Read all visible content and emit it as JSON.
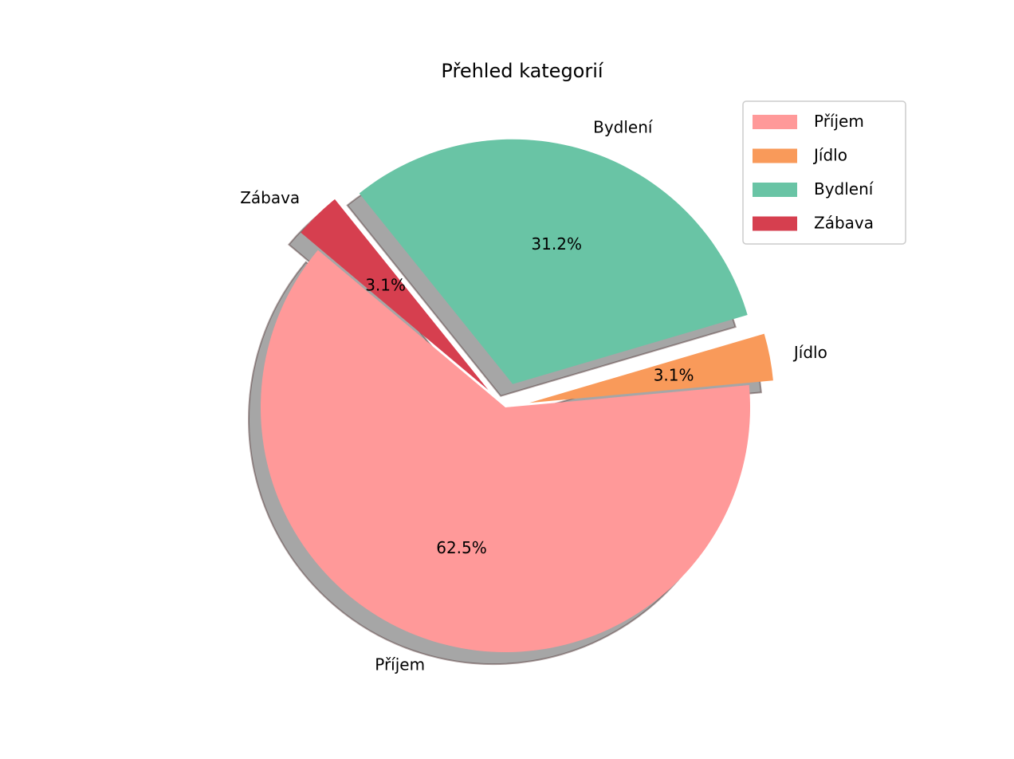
{
  "chart_data": {
    "type": "pie",
    "title": "Přehled kategorií",
    "categories": [
      "Příjem",
      "Jídlo",
      "Bydlení",
      "Zábava"
    ],
    "values": [
      62.5,
      3.1,
      31.2,
      3.1
    ],
    "value_labels": [
      "62.5%",
      "3.1%",
      "31.2%",
      "3.1%"
    ],
    "colors": [
      "#ff9999",
      "#f99a5a",
      "#69c4a5",
      "#d63f4f"
    ],
    "exploded": [
      false,
      true,
      true,
      true
    ],
    "shadow": true,
    "legend": {
      "position": "top-right",
      "entries": [
        "Příjem",
        "Jídlo",
        "Bydlení",
        "Zábava"
      ]
    }
  }
}
